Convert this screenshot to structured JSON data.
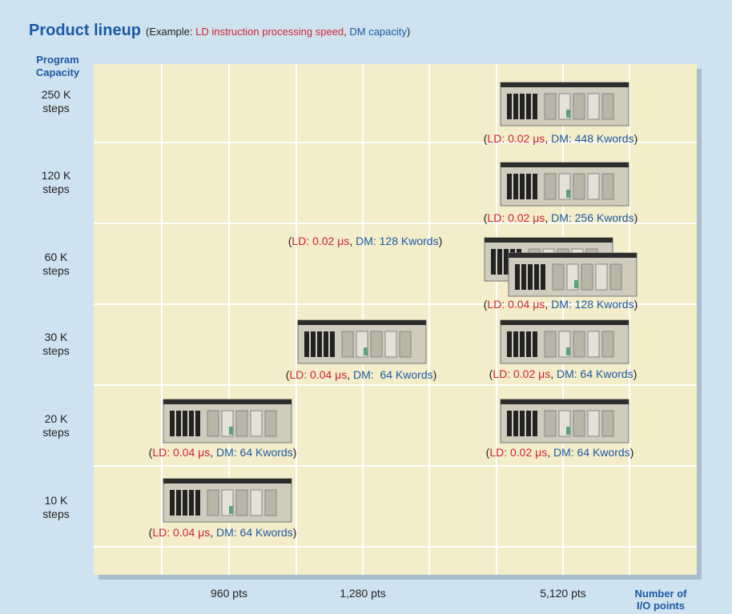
{
  "header": {
    "title": "Product lineup",
    "example": [
      "(Example: ",
      "LD instruction processing speed",
      ", ",
      "DM capacity",
      ")"
    ]
  },
  "y_axis": {
    "title": [
      "Program",
      "Capacity"
    ],
    "rows": [
      [
        "250 K",
        "steps"
      ],
      [
        "120 K",
        "steps"
      ],
      [
        "60 K",
        "steps"
      ],
      [
        "30 K",
        "steps"
      ],
      [
        "20 K",
        "steps"
      ],
      [
        "10 K",
        "steps"
      ]
    ]
  },
  "x_axis": {
    "title": [
      "Number of",
      "I/O points"
    ],
    "labels": [
      "960 pts",
      "1,280 pts",
      "5,120 pts"
    ]
  },
  "products": [
    {
      "label": [
        "(",
        "LD: 0.02 μs",
        ", ",
        "DM: 448 Kwords",
        ")"
      ]
    },
    {
      "label": [
        "(",
        "LD: 0.02 μs",
        ", ",
        "DM: 256 Kwords",
        ")"
      ]
    },
    {
      "label": [
        "(",
        "LD: 0.02 μs",
        ", ",
        "DM: 128 Kwords",
        ")"
      ]
    },
    {
      "label": [
        "(",
        "LD: 0.04 μs",
        ", ",
        "DM: 128 Kwords",
        ")"
      ]
    },
    {
      "label": [
        "(",
        "LD: 0.04 μs",
        ", ",
        "DM:  64 Kwords",
        ")"
      ]
    },
    {
      "label": [
        "(",
        "LD: 0.02 μs",
        ", ",
        "DM: 64 Kwords",
        ")"
      ]
    },
    {
      "label": [
        "(",
        "LD: 0.04 μs",
        ", ",
        "DM: 64 Kwords",
        ")"
      ]
    },
    {
      "label": [
        "(",
        "LD: 0.02 μs",
        ", ",
        "DM: 64 Kwords",
        ")"
      ]
    },
    {
      "label": [
        "(",
        "LD: 0.04 μs",
        ", ",
        "DM: 64 Kwords",
        ")"
      ]
    }
  ]
}
